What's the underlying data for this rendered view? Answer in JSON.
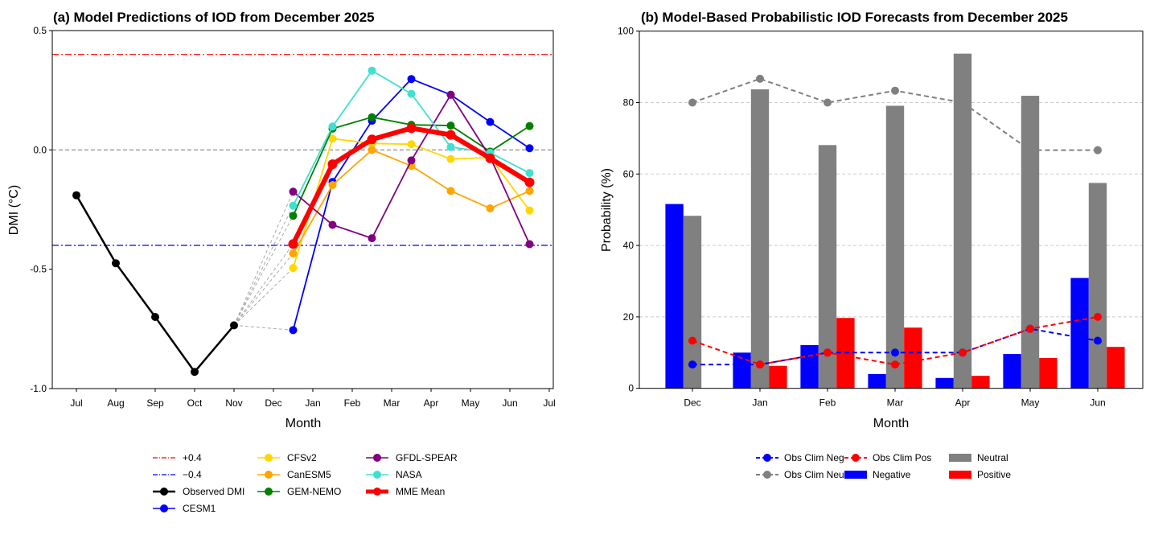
{
  "chart_data": [
    {
      "type": "line",
      "title": "(a) Model Predictions of IOD from December 2025",
      "xlabel": "Month",
      "ylabel": "DMI (°C)",
      "ylim": [
        -1.0,
        0.5
      ],
      "yticks": [
        "0.5",
        "0.0",
        "-0.5",
        "-1.0"
      ],
      "yticks_values": [
        0.5,
        0.0,
        -0.5,
        -1.0
      ],
      "xticks": [
        "Jul",
        "Aug",
        "Sep",
        "Oct",
        "Nov",
        "Dec",
        "Jan",
        "Feb",
        "Mar",
        "Apr",
        "May",
        "Jun",
        "Jul"
      ],
      "grid": false,
      "legend_placement": "below",
      "reference_lines": [
        {
          "name": "+0.4",
          "value": 0.4,
          "color": "#ff0000",
          "style": "dashdot"
        },
        {
          "name": "−0.4",
          "value": -0.4,
          "color": "#0000ff",
          "style": "dashdot"
        },
        {
          "value": 0.0,
          "color": "#808080",
          "style": "dashed"
        }
      ],
      "observed": {
        "name": "Observed DMI",
        "color": "#000000",
        "months": [
          "Jul",
          "Aug",
          "Sep",
          "Oct",
          "Nov"
        ],
        "values": [
          -0.19,
          -0.475,
          -0.7,
          -0.93,
          -0.735
        ]
      },
      "forecast_months": [
        "Dec",
        "Jan",
        "Feb",
        "Mar",
        "Apr",
        "May",
        "Jun"
      ],
      "series": [
        {
          "name": "CESM1",
          "color": "#0000ff",
          "values": [
            -0.755,
            -0.134,
            0.122,
            0.297,
            0.231,
            0.117,
            0.007
          ]
        },
        {
          "name": "CFSv2",
          "color": "#ffd700",
          "values": [
            -0.495,
            0.047,
            0.027,
            0.024,
            -0.038,
            -0.032,
            -0.254
          ]
        },
        {
          "name": "CanESM5",
          "color": "#ffa500",
          "values": [
            -0.434,
            -0.147,
            0.0,
            -0.067,
            -0.172,
            -0.245,
            -0.172
          ]
        },
        {
          "name": "GEM-NEMO",
          "color": "#008000",
          "values": [
            -0.276,
            0.089,
            0.137,
            0.105,
            0.102,
            -0.007,
            0.1
          ]
        },
        {
          "name": "GFDL-SPEAR",
          "color": "#800080",
          "values": [
            -0.175,
            -0.314,
            -0.37,
            -0.044,
            0.231,
            -0.03,
            -0.395
          ]
        },
        {
          "name": "NASA",
          "color": "#40e0d0",
          "values": [
            -0.234,
            0.098,
            0.332,
            0.235,
            0.012,
            -0.012,
            -0.097
          ]
        },
        {
          "name": "MME Mean",
          "color": "#ff0000",
          "values": [
            -0.394,
            -0.06,
            0.044,
            0.091,
            0.063,
            -0.035,
            -0.136
          ]
        }
      ]
    },
    {
      "type": "bar",
      "title": "(b) Model-Based Probabilistic IOD Forecasts from December 2025",
      "xlabel": "Month",
      "ylabel": "Probability (%)",
      "ylim": [
        0,
        100
      ],
      "yticks": [
        "0",
        "20",
        "40",
        "60",
        "80",
        "100"
      ],
      "grid": "horizontal dashed",
      "legend_placement": "below",
      "categories": [
        "Dec",
        "Jan",
        "Feb",
        "Mar",
        "Apr",
        "May",
        "Jun"
      ],
      "series": [
        {
          "name": "Negative",
          "color": "#0000ff",
          "values": [
            51.6,
            10.0,
            12.1,
            4.0,
            2.9,
            9.6,
            30.9
          ]
        },
        {
          "name": "Neutral",
          "color": "#808080",
          "values": [
            48.3,
            83.7,
            68.1,
            79.1,
            93.7,
            81.9,
            57.5
          ]
        },
        {
          "name": "Positive",
          "color": "#ff0000",
          "values": [
            0,
            6.3,
            19.7,
            17.0,
            3.5,
            8.5,
            11.6
          ]
        }
      ],
      "lines": [
        {
          "name": "Obs Clim Neg",
          "color": "#0000ff",
          "values": [
            6.67,
            6.67,
            10,
            10,
            10,
            16.67,
            13.33
          ]
        },
        {
          "name": "Obs Clim Neu",
          "color": "#808080",
          "values": [
            80,
            86.67,
            80,
            83.33,
            80,
            66.67,
            66.67
          ]
        },
        {
          "name": "Obs Clim Pos",
          "color": "#ff0000",
          "values": [
            13.33,
            6.67,
            10,
            6.67,
            10,
            16.67,
            20
          ]
        }
      ]
    }
  ]
}
